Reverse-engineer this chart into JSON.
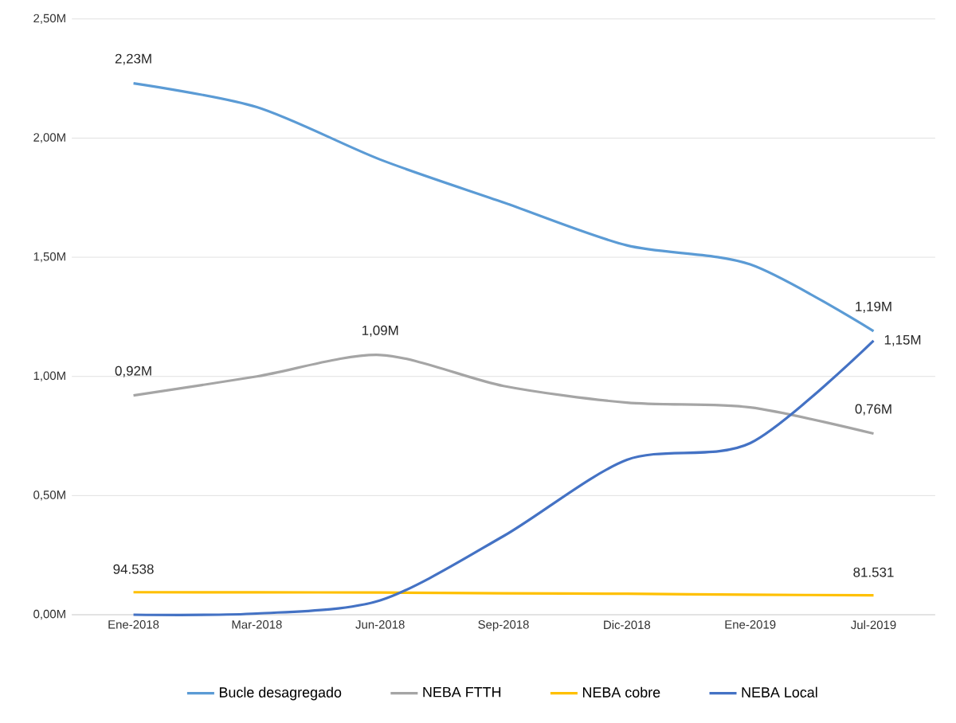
{
  "chart_data": {
    "type": "line",
    "categories": [
      "Ene-2018",
      "Mar-2018",
      "Jun-2018",
      "Sep-2018",
      "Dic-2018",
      "Ene-2019",
      "Jul-2019"
    ],
    "series": [
      {
        "name": "Bucle desagregado",
        "color": "#5b9bd5",
        "values": [
          2230000,
          2130000,
          1910000,
          1730000,
          1550000,
          1470000,
          1190000
        ],
        "value_labels": [
          "2,23M",
          null,
          null,
          null,
          null,
          null,
          "1,19M"
        ]
      },
      {
        "name": "NEBA FTTH",
        "color": "#a5a5a5",
        "values": [
          920000,
          1000000,
          1090000,
          960000,
          890000,
          870000,
          760000
        ],
        "value_labels": [
          "0,92M",
          null,
          "1,09M",
          null,
          null,
          null,
          "0,76M"
        ]
      },
      {
        "name": "NEBA cobre",
        "color": "#ffc000",
        "values": [
          94538,
          94000,
          93000,
          90000,
          88000,
          84000,
          81531
        ],
        "value_labels": [
          "94.538",
          null,
          null,
          null,
          null,
          null,
          "81.531"
        ]
      },
      {
        "name": "NEBA Local",
        "color": "#4472c4",
        "values": [
          0,
          5000,
          60000,
          330000,
          650000,
          720000,
          1150000
        ],
        "value_labels": [
          null,
          null,
          null,
          null,
          null,
          null,
          "1,15M"
        ]
      }
    ],
    "ylim": [
      0,
      2500000
    ],
    "yticks": [
      {
        "value": 0,
        "label": "0,00M"
      },
      {
        "value": 500000,
        "label": "0,50M"
      },
      {
        "value": 1000000,
        "label": "1,00M"
      },
      {
        "value": 1500000,
        "label": "1,50M"
      },
      {
        "value": 2000000,
        "label": "2,00M"
      },
      {
        "value": 2500000,
        "label": "2,50M"
      }
    ],
    "grid": "y",
    "legend": "bottom",
    "marker": "none",
    "line_style": "solid"
  }
}
